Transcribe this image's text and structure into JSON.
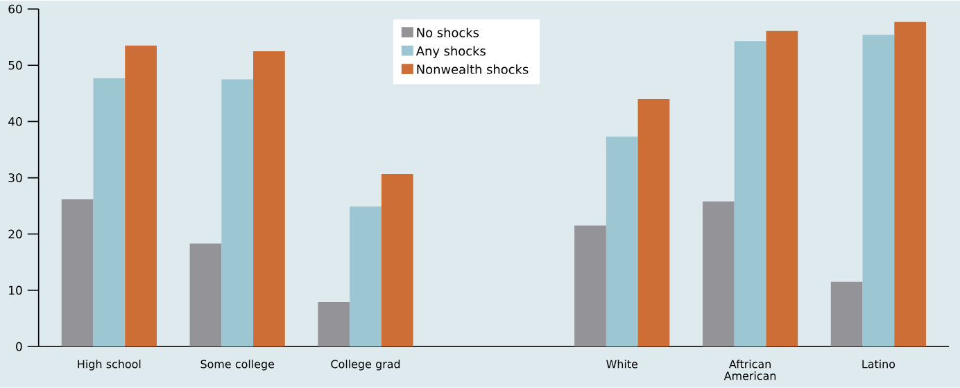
{
  "chart_data": {
    "type": "bar",
    "categories": [
      "High school",
      "Some college",
      "College grad",
      null,
      "White",
      "Aftrican American",
      "Latino"
    ],
    "series": [
      {
        "name": "No shocks",
        "color": "#949498",
        "values": [
          26.2,
          18.3,
          7.9,
          null,
          21.5,
          25.8,
          11.5
        ]
      },
      {
        "name": "Any shocks",
        "color": "#9dc6d3",
        "values": [
          47.7,
          47.5,
          24.9,
          null,
          37.3,
          54.3,
          55.4
        ]
      },
      {
        "name": "Nonwealth shocks",
        "color": "#cc6e36",
        "values": [
          53.5,
          52.5,
          30.7,
          null,
          44.0,
          56.1,
          57.7
        ]
      }
    ],
    "ylim": [
      0,
      60
    ],
    "yticks": [
      0,
      10,
      20,
      30,
      40,
      50,
      60
    ],
    "grid": false,
    "legend": "top"
  }
}
